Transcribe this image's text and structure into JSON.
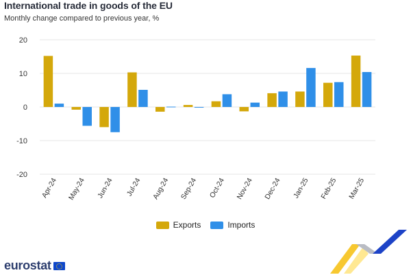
{
  "title": "International trade in goods of the EU",
  "subtitle": "Monthly change compared to previous year, %",
  "brand": "eurostat",
  "colors": {
    "exports": "#d4a80b",
    "imports": "#2f8fe8",
    "grid": "#e6e6e6"
  },
  "chart_data": {
    "type": "bar",
    "categories": [
      "Apr-24",
      "May-24",
      "Jun-24",
      "Jul-24",
      "Aug-24",
      "Sep-24",
      "Oct-24",
      "Nov-24",
      "Dec-24",
      "Jan-25",
      "Feb-25",
      "Mar-25"
    ],
    "series": [
      {
        "name": "Exports",
        "values": [
          15.2,
          -0.8,
          -6.0,
          10.3,
          -1.4,
          0.6,
          1.7,
          -1.3,
          4.1,
          4.6,
          7.2,
          15.3
        ]
      },
      {
        "name": "Imports",
        "values": [
          1.0,
          -5.6,
          -7.5,
          5.1,
          0.1,
          -0.2,
          3.8,
          1.3,
          4.6,
          11.6,
          7.4,
          10.4
        ]
      }
    ],
    "xlabel": "",
    "ylabel": "",
    "ylim": [
      -20,
      20
    ],
    "yticks": [
      20,
      10,
      0,
      -10,
      -20
    ],
    "grid": true,
    "legend": "bottom-center"
  }
}
